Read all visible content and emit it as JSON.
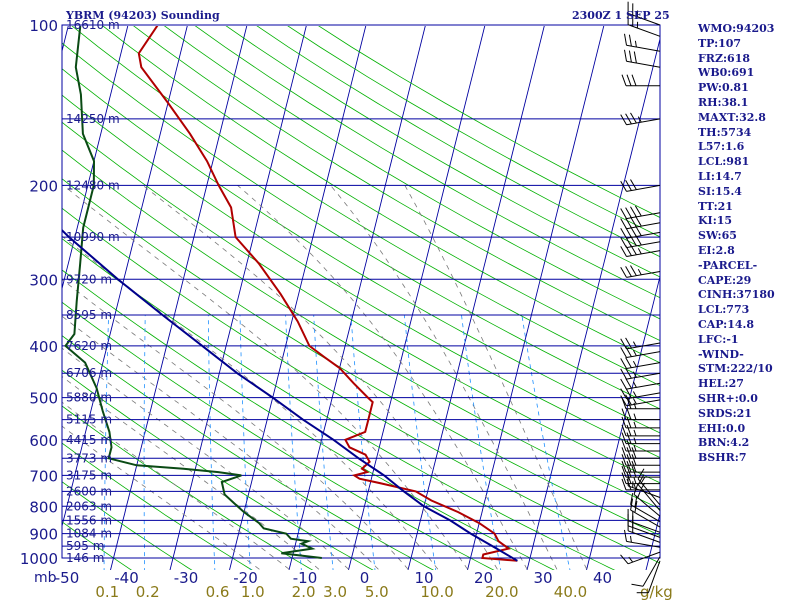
{
  "header": {
    "station": "YBRM (94203) Sounding",
    "time": "2300Z  1 SEP 25"
  },
  "indices": [
    "WMO:94203",
    "TP:107",
    "FRZ:618",
    "WB0:691",
    "PW:0.81",
    "RH:38.1",
    "MAXT:32.8",
    "TH:5734",
    "L57:1.6",
    "LCL:981",
    "LI:14.7",
    "SI:15.4",
    "TT:21",
    "KI:15",
    "SW:65",
    "EI:2.8",
    "-PARCEL-",
    "CAPE:29",
    "CINH:37180",
    "LCL:773",
    "CAP:14.8",
    "LFC:-1",
    "-WIND-",
    "STM:222/10",
    "HEL:27",
    "SHR+:0.0",
    "SRDS:21",
    "EHI:0.0",
    "BRN:4.2",
    "BSHR:7"
  ],
  "chart_data": {
    "type": "line",
    "title": "YBRM (94203) Sounding",
    "subtitle": "2300Z  1 SEP 25",
    "xlabel": "",
    "ylabel": "mb",
    "xlim": [
      -50,
      50
    ],
    "ylim": [
      1000,
      100
    ],
    "y_scale": "log-pressure",
    "x_ticks": [
      -50,
      -40,
      -30,
      -20,
      -10,
      0,
      10,
      20,
      30,
      40
    ],
    "x_tick_labels": [
      "-50",
      "-40",
      "-30",
      "-20",
      "-10",
      "0",
      "10",
      "20",
      "30",
      "40"
    ],
    "pressure_ticks": [
      100,
      200,
      300,
      400,
      500,
      600,
      700,
      800,
      900,
      1000
    ],
    "pressure_tick_labels": [
      "100",
      "200",
      "300",
      "400",
      "500",
      "600",
      "700",
      "800",
      "900",
      "1000"
    ],
    "height_levels": [
      {
        "p": 100,
        "label": "16610 m"
      },
      {
        "p": 150,
        "label": "14250 m"
      },
      {
        "p": 200,
        "label": "12480 m"
      },
      {
        "p": 250,
        "label": "10990 m"
      },
      {
        "p": 300,
        "label": "9720 m"
      },
      {
        "p": 350,
        "label": "8595 m"
      },
      {
        "p": 400,
        "label": "7620 m"
      },
      {
        "p": 450,
        "label": "6706 m"
      },
      {
        "p": 500,
        "label": "5880 m"
      },
      {
        "p": 550,
        "label": "5115 m"
      },
      {
        "p": 600,
        "label": "4415 m"
      },
      {
        "p": 650,
        "label": "3773 m"
      },
      {
        "p": 700,
        "label": "3175 m"
      },
      {
        "p": 750,
        "label": "2600 m"
      },
      {
        "p": 800,
        "label": "2063 m"
      },
      {
        "p": 850,
        "label": "1556 m"
      },
      {
        "p": 900,
        "label": "1084 m"
      },
      {
        "p": 950,
        "label": "595 m"
      },
      {
        "p": 1000,
        "label": "146 m"
      }
    ],
    "mixing_ratio_labels": [
      {
        "w": 0.1,
        "label": "0.1"
      },
      {
        "w": 0.2,
        "label": "0.2"
      },
      {
        "w": 0.6,
        "label": "0.6"
      },
      {
        "w": 1.0,
        "label": "1.0"
      },
      {
        "w": 2.0,
        "label": "2.0"
      },
      {
        "w": 3.0,
        "label": "3.0"
      },
      {
        "w": 5.0,
        "label": "5.0"
      },
      {
        "w": 10.0,
        "label": "10.0"
      },
      {
        "w": 20.0,
        "label": "20.0"
      },
      {
        "w": 40.0,
        "label": "40.0"
      }
    ],
    "mixing_ratio_unit": "g/kg",
    "series": [
      {
        "color": "#b00000",
        "points": [
          [
            1012,
            28
          ],
          [
            1000,
            22
          ],
          [
            985,
            22
          ],
          [
            960,
            26
          ],
          [
            930,
            24
          ],
          [
            900,
            23
          ],
          [
            860,
            20
          ],
          [
            820,
            16
          ],
          [
            780,
            11
          ],
          [
            750,
            8
          ],
          [
            725,
            2
          ],
          [
            710,
            -2
          ],
          [
            700,
            -3
          ],
          [
            690,
            -1
          ],
          [
            680,
            -2
          ],
          [
            660,
            -1
          ],
          [
            640,
            -2
          ],
          [
            620,
            -5
          ],
          [
            600,
            -6
          ],
          [
            580,
            -3
          ],
          [
            560,
            -3
          ],
          [
            540,
            -3
          ],
          [
            510,
            -3
          ],
          [
            500,
            -4
          ],
          [
            470,
            -7
          ],
          [
            440,
            -10
          ],
          [
            420,
            -13
          ],
          [
            400,
            -16
          ],
          [
            360,
            -19
          ],
          [
            320,
            -23
          ],
          [
            280,
            -28
          ],
          [
            250,
            -33
          ],
          [
            220,
            -35
          ],
          [
            200,
            -38
          ],
          [
            180,
            -41
          ],
          [
            160,
            -45
          ],
          [
            140,
            -50
          ],
          [
            120,
            -56
          ],
          [
            113,
            -57
          ],
          [
            100,
            -55
          ]
        ]
      },
      {
        "color": "#0a4a14",
        "points": [
          [
            1000,
            -5
          ],
          [
            980,
            -12
          ],
          [
            960,
            -7
          ],
          [
            940,
            -9
          ],
          [
            930,
            -8
          ],
          [
            920,
            -11
          ],
          [
            900,
            -12
          ],
          [
            880,
            -16
          ],
          [
            860,
            -17
          ],
          [
            820,
            -20
          ],
          [
            790,
            -22
          ],
          [
            760,
            -24
          ],
          [
            720,
            -25
          ],
          [
            700,
            -22
          ],
          [
            690,
            -26
          ],
          [
            680,
            -32
          ],
          [
            670,
            -40
          ],
          [
            650,
            -45
          ],
          [
            620,
            -45
          ],
          [
            580,
            -46
          ],
          [
            530,
            -48
          ],
          [
            480,
            -50
          ],
          [
            430,
            -53
          ],
          [
            400,
            -57
          ],
          [
            380,
            -56
          ],
          [
            330,
            -57
          ],
          [
            280,
            -58
          ],
          [
            240,
            -59
          ],
          [
            200,
            -59
          ],
          [
            180,
            -60
          ],
          [
            160,
            -63
          ],
          [
            135,
            -65
          ],
          [
            120,
            -67
          ],
          [
            100,
            -68
          ]
        ]
      },
      {
        "color": "#00008c",
        "points": [
          [
            1012,
            28
          ],
          [
            960,
            24
          ],
          [
            900,
            19
          ],
          [
            850,
            15
          ],
          [
            800,
            10
          ],
          [
            750,
            6
          ],
          [
            700,
            2
          ],
          [
            650,
            -3
          ],
          [
            600,
            -8
          ],
          [
            550,
            -14
          ],
          [
            500,
            -20
          ],
          [
            450,
            -27
          ],
          [
            400,
            -34
          ],
          [
            350,
            -42
          ],
          [
            300,
            -51
          ],
          [
            250,
            -61
          ],
          [
            200,
            -72
          ],
          [
            180,
            -77
          ],
          [
            150,
            -84
          ],
          [
            120,
            -89
          ]
        ]
      }
    ],
    "wind_barbs": [
      {
        "p": 1012,
        "dir": 200,
        "spd": 10
      },
      {
        "p": 995,
        "dir": 210,
        "spd": 10
      },
      {
        "p": 975,
        "dir": 250,
        "spd": 15
      },
      {
        "p": 955,
        "dir": 280,
        "spd": 15
      },
      {
        "p": 935,
        "dir": 290,
        "spd": 20
      },
      {
        "p": 915,
        "dir": 290,
        "spd": 20
      },
      {
        "p": 895,
        "dir": 290,
        "spd": 20
      },
      {
        "p": 875,
        "dir": 300,
        "spd": 20
      },
      {
        "p": 855,
        "dir": 300,
        "spd": 20
      },
      {
        "p": 835,
        "dir": 310,
        "spd": 15
      },
      {
        "p": 815,
        "dir": 320,
        "spd": 15
      },
      {
        "p": 795,
        "dir": 320,
        "spd": 15
      },
      {
        "p": 770,
        "dir": 290,
        "spd": 15
      },
      {
        "p": 745,
        "dir": 270,
        "spd": 25
      },
      {
        "p": 725,
        "dir": 270,
        "spd": 25
      },
      {
        "p": 705,
        "dir": 270,
        "spd": 30
      },
      {
        "p": 690,
        "dir": 270,
        "spd": 30
      },
      {
        "p": 670,
        "dir": 270,
        "spd": 30
      },
      {
        "p": 650,
        "dir": 270,
        "spd": 30
      },
      {
        "p": 630,
        "dir": 270,
        "spd": 25
      },
      {
        "p": 610,
        "dir": 270,
        "spd": 25
      },
      {
        "p": 590,
        "dir": 270,
        "spd": 25
      },
      {
        "p": 570,
        "dir": 270,
        "spd": 25
      },
      {
        "p": 550,
        "dir": 270,
        "spd": 25
      },
      {
        "p": 525,
        "dir": 270,
        "spd": 25
      },
      {
        "p": 505,
        "dir": 260,
        "spd": 25
      },
      {
        "p": 490,
        "dir": 260,
        "spd": 25
      },
      {
        "p": 470,
        "dir": 260,
        "spd": 25
      },
      {
        "p": 450,
        "dir": 260,
        "spd": 25
      },
      {
        "p": 430,
        "dir": 260,
        "spd": 25
      },
      {
        "p": 410,
        "dir": 260,
        "spd": 25
      },
      {
        "p": 395,
        "dir": 260,
        "spd": 25
      },
      {
        "p": 290,
        "dir": 260,
        "spd": 35
      },
      {
        "p": 265,
        "dir": 260,
        "spd": 35
      },
      {
        "p": 255,
        "dir": 260,
        "spd": 40
      },
      {
        "p": 245,
        "dir": 260,
        "spd": 40
      },
      {
        "p": 235,
        "dir": 260,
        "spd": 40
      },
      {
        "p": 225,
        "dir": 260,
        "spd": 40
      },
      {
        "p": 200,
        "dir": 260,
        "spd": 30
      },
      {
        "p": 150,
        "dir": 260,
        "spd": 35
      },
      {
        "p": 130,
        "dir": 270,
        "spd": 30
      },
      {
        "p": 120,
        "dir": 280,
        "spd": 30
      },
      {
        "p": 112,
        "dir": 280,
        "spd": 25
      },
      {
        "p": 105,
        "dir": 290,
        "spd": 25
      },
      {
        "p": 100,
        "dir": 290,
        "spd": 25
      }
    ],
    "colors": {
      "isobar": "#0000a0",
      "isotherm": "#0000a0",
      "dry_adiabat": "#00b000",
      "moist_adiabat": "#7a7a7a",
      "mixing_ratio": "#1e90ff",
      "label": "#1a1a8c",
      "mixing_label": "#8a7a1a",
      "barb": "#000000"
    }
  }
}
